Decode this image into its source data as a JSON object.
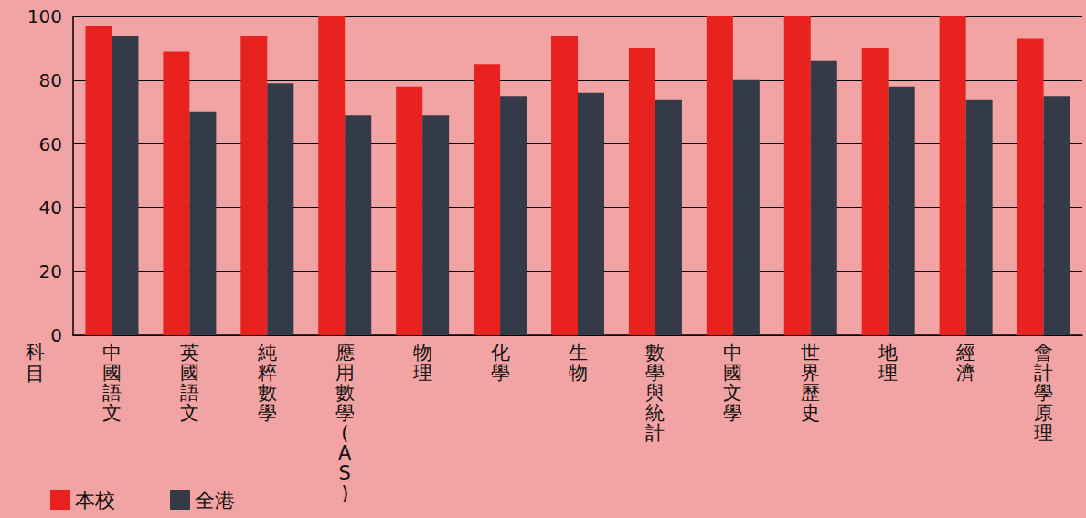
{
  "chart_data": {
    "type": "bar",
    "x_label": "科目",
    "categories": [
      "中國語文",
      "英國語文",
      "純粹數學",
      "應用數學(AS)",
      "物理",
      "化學",
      "生物",
      "數學與統計",
      "中國文學",
      "世界歷史",
      "地理",
      "經濟",
      "會計學原理"
    ],
    "series": [
      {
        "name": "本校",
        "color": "#e8231f",
        "values": [
          97,
          89,
          94,
          100,
          78,
          85,
          94,
          90,
          100,
          100,
          90,
          100,
          93
        ]
      },
      {
        "name": "全港",
        "color": "#343a48",
        "values": [
          94,
          70,
          79,
          69,
          69,
          75,
          76,
          74,
          80,
          86,
          78,
          74,
          75
        ]
      }
    ],
    "ylim": [
      0,
      100
    ],
    "yticks": [
      0,
      20,
      40,
      60,
      80,
      100
    ],
    "grid": true,
    "legend": "bottom-left"
  }
}
